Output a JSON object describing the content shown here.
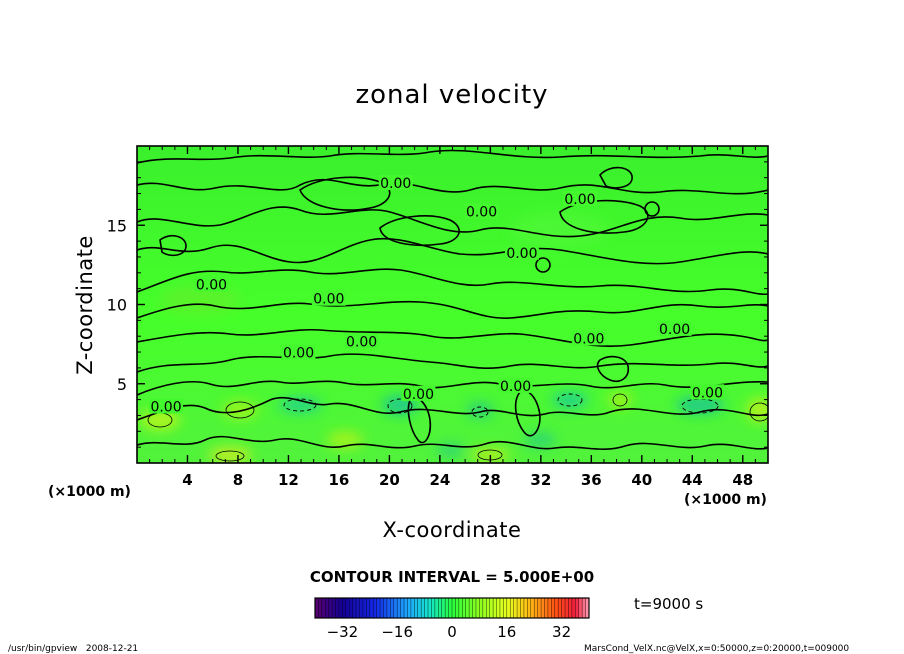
{
  "chart_data": {
    "type": "heatmap",
    "title": "zonal velocity",
    "xlabel": "X-coordinate",
    "ylabel": "Z-coordinate",
    "x_unit_left": "(×1000 m)",
    "x_unit_right": "(×1000 m)",
    "xlim": [
      0,
      50
    ],
    "ylim": [
      0,
      20
    ],
    "x_ticks": [
      4,
      8,
      12,
      16,
      20,
      24,
      28,
      32,
      36,
      40,
      44,
      48
    ],
    "y_ticks": [
      5,
      10,
      15
    ],
    "contour_interval_text": "CONTOUR INTERVAL = 5.000E+00",
    "contour_labels": [
      {
        "text": "0.00",
        "x": 20.5,
        "y": 17.6
      },
      {
        "text": "0.00",
        "x": 27.3,
        "y": 15.8
      },
      {
        "text": "0.00",
        "x": 35.1,
        "y": 16.6
      },
      {
        "text": "0.00",
        "x": 30.5,
        "y": 13.2
      },
      {
        "text": "0.00",
        "x": 5.9,
        "y": 11.2
      },
      {
        "text": "0.00",
        "x": 15.2,
        "y": 10.3
      },
      {
        "text": "0.00",
        "x": 35.8,
        "y": 7.8
      },
      {
        "text": "0.00",
        "x": 42.6,
        "y": 8.4
      },
      {
        "text": "0.00",
        "x": 17.8,
        "y": 7.6
      },
      {
        "text": "0.00",
        "x": 12.8,
        "y": 6.9
      },
      {
        "text": "0.00",
        "x": 30.0,
        "y": 4.8
      },
      {
        "text": "0.00",
        "x": 22.3,
        "y": 4.3
      },
      {
        "text": "0.00",
        "x": 45.2,
        "y": 4.4
      },
      {
        "text": "0.00",
        "x": 2.3,
        "y": 3.5
      }
    ],
    "colorbar": {
      "range": [
        -40,
        40
      ],
      "ticks": [
        -32,
        -16,
        0,
        16,
        32
      ],
      "tick_labels": [
        "−32",
        "−16",
        "0",
        "16",
        "32"
      ]
    },
    "time_label": "t=9000 s",
    "grid": false,
    "legend": "colorbar-bottom"
  },
  "footer": {
    "left": "/usr/bin/gpview   2008-12-21",
    "right": "MarsCond_VelX.nc@VelX,x=0:50000,z=0:20000,t=009000"
  },
  "colors": {
    "field_green": "#39ff2e",
    "line": "#000000"
  }
}
